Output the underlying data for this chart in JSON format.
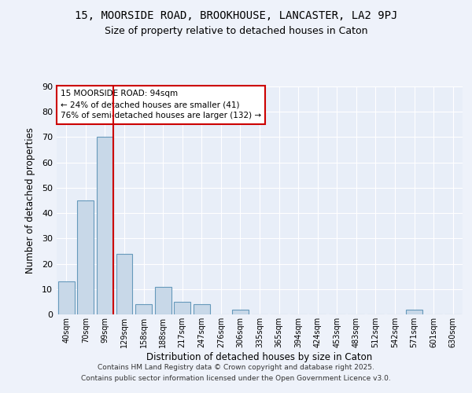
{
  "title1": "15, MOORSIDE ROAD, BROOKHOUSE, LANCASTER, LA2 9PJ",
  "title2": "Size of property relative to detached houses in Caton",
  "xlabel": "Distribution of detached houses by size in Caton",
  "ylabel": "Number of detached properties",
  "bin_labels": [
    "40sqm",
    "70sqm",
    "99sqm",
    "129sqm",
    "158sqm",
    "188sqm",
    "217sqm",
    "247sqm",
    "276sqm",
    "306sqm",
    "335sqm",
    "365sqm",
    "394sqm",
    "424sqm",
    "453sqm",
    "483sqm",
    "512sqm",
    "542sqm",
    "571sqm",
    "601sqm",
    "630sqm"
  ],
  "bar_heights": [
    13,
    45,
    70,
    24,
    4,
    11,
    5,
    4,
    0,
    2,
    0,
    0,
    0,
    0,
    0,
    0,
    0,
    0,
    2,
    0,
    0
  ],
  "bar_color": "#c8d8e8",
  "bar_edge_color": "#6699bb",
  "background_color": "#e8eef8",
  "grid_color": "#ffffff",
  "red_line_x": 2.425,
  "annotation_text": "15 MOORSIDE ROAD: 94sqm\n← 24% of detached houses are smaller (41)\n76% of semi-detached houses are larger (132) →",
  "annotation_box_color": "#ffffff",
  "annotation_border_color": "#cc0000",
  "footer1": "Contains HM Land Registry data © Crown copyright and database right 2025.",
  "footer2": "Contains public sector information licensed under the Open Government Licence v3.0.",
  "ylim": [
    0,
    90
  ],
  "yticks": [
    0,
    10,
    20,
    30,
    40,
    50,
    60,
    70,
    80,
    90
  ]
}
